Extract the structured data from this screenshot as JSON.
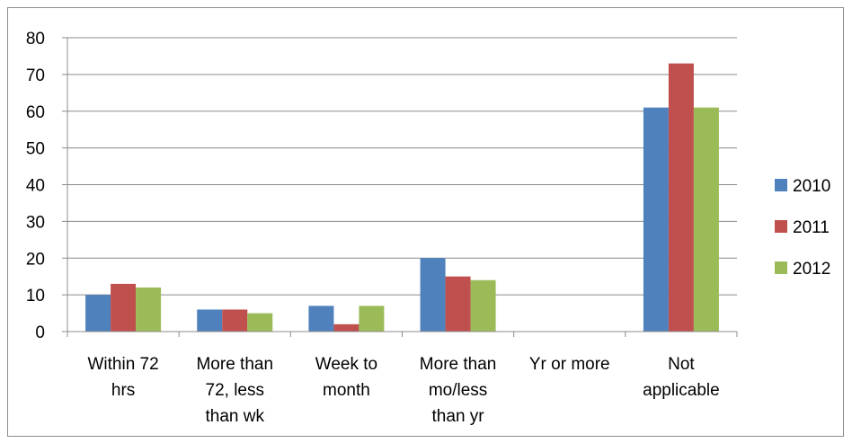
{
  "chart_data": {
    "type": "bar",
    "categories": [
      [
        "Within 72",
        "hrs"
      ],
      [
        "More than",
        "72, less",
        "than wk"
      ],
      [
        "Week to",
        "month"
      ],
      [
        "More than",
        "mo/less",
        "than yr"
      ],
      [
        "Yr or more"
      ],
      [
        "Not",
        "applicable"
      ]
    ],
    "series": [
      {
        "name": "2010",
        "color": "#4F81BD",
        "values": [
          10,
          6,
          7,
          20,
          0,
          61
        ]
      },
      {
        "name": "2011",
        "color": "#C0504D",
        "values": [
          13,
          6,
          2,
          15,
          0,
          73
        ]
      },
      {
        "name": "2012",
        "color": "#9BBB59",
        "values": [
          12,
          5,
          7,
          14,
          0,
          61
        ]
      }
    ],
    "ylim": [
      0,
      80
    ],
    "yticks": [
      0,
      10,
      20,
      30,
      40,
      50,
      60,
      70,
      80
    ],
    "grid": true,
    "legend": "right"
  }
}
